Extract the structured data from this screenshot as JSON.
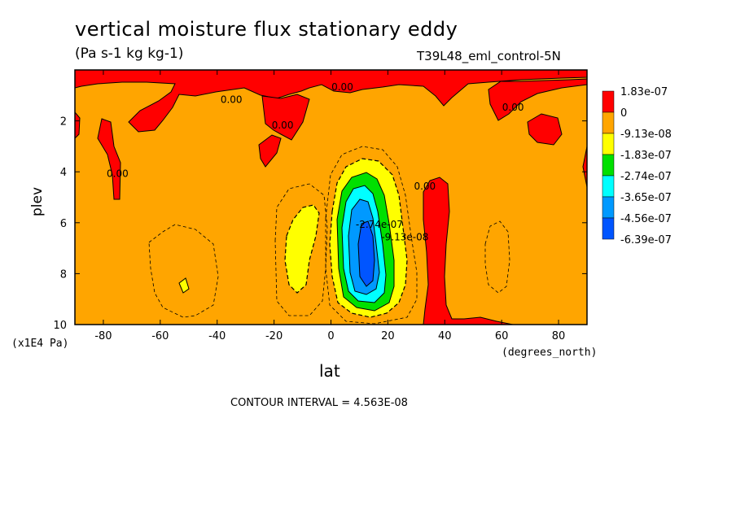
{
  "title": "vertical moisture flux stationary eddy",
  "units": "(Pa s-1 kg kg-1)",
  "run_name": "T39L48_eml_control-5N",
  "y_unit": "(x1E4 Pa)",
  "x_unit": "(degrees_north)",
  "contour_interval": "CONTOUR INTERVAL = 4.563E-08",
  "colors": {
    "red": "#ff0000",
    "orange": "#ffa500",
    "yellow": "#ffff00",
    "green": "#00e000",
    "cyan": "#00ffff",
    "lightblue": "#0099ff",
    "blue": "#0055ff"
  },
  "chart_data": {
    "type": "heatmap",
    "title": "vertical moisture flux stationary eddy",
    "xlabel": "lat",
    "ylabel": "plev",
    "xlim": [
      -90,
      90
    ],
    "ylim": [
      10,
      0
    ],
    "x_ticks": [
      -80,
      -60,
      -40,
      -20,
      0,
      20,
      40,
      60,
      80
    ],
    "y_ticks": [
      2,
      4,
      6,
      8,
      10
    ],
    "legend": {
      "placement": "right",
      "labels": [
        "1.83e-07",
        "0",
        "-9.13e-08",
        "-1.83e-07",
        "-2.74e-07",
        "-3.65e-07",
        "-4.56e-07",
        "-6.39e-07"
      ],
      "colors": [
        "#ff0000",
        "#ffa500",
        "#ffff00",
        "#00e000",
        "#00ffff",
        "#0099ff",
        "#0055ff"
      ]
    },
    "contour_labels": [
      {
        "text": "0.00",
        "lat": -35,
        "plev": 1.3
      },
      {
        "text": "0.00",
        "lat": 4,
        "plev": 0.8
      },
      {
        "text": "0.00",
        "lat": -17,
        "plev": 2.3
      },
      {
        "text": "0.00",
        "lat": 64,
        "plev": 1.6
      },
      {
        "text": "0.00",
        "lat": -75,
        "plev": 4.2
      },
      {
        "text": "0.00",
        "lat": 33,
        "plev": 4.7
      },
      {
        "text": "-9.13e-08",
        "lat": 26,
        "plev": 6.7
      },
      {
        "text": "-2.74e-07",
        "lat": 17,
        "plev": 6.2
      }
    ],
    "regions": [
      {
        "value_class": "positive",
        "desc": "red band near 35N extending surface to 5"
      },
      {
        "value_class": "negative",
        "desc": "minimum near 12N at plev 7.5"
      }
    ]
  }
}
